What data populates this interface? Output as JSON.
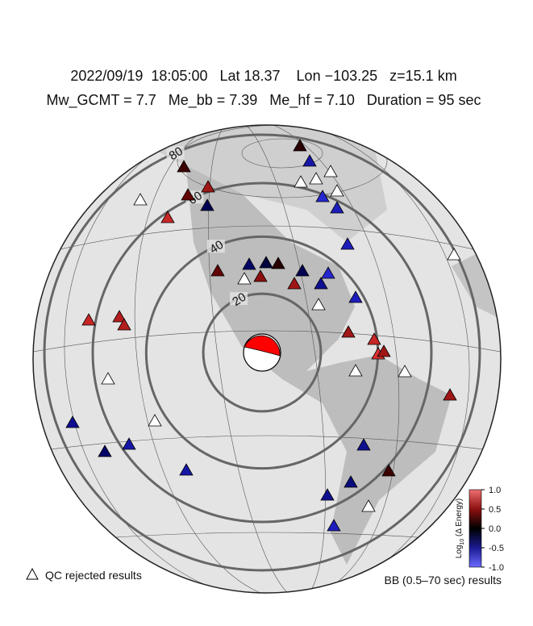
{
  "header": {
    "line1": "2022/09/19  18:05:00   Lat 18.37    Lon −103.25   z=15.1 km",
    "line2": "Mw_GCMT = 7.7   Me_bb = 7.39   Me_hf = 7.10   Duration = 95 sec"
  },
  "rings": [
    20,
    40,
    60,
    80
  ],
  "colorbar": {
    "label_main": "Log",
    "label_sub": "10",
    "label_rest": " (Δ Energy)",
    "clim": [
      -1,
      1
    ],
    "ticks": [
      {
        "value": 1,
        "label": "1.0"
      },
      {
        "value": 0.5,
        "label": "0.5"
      },
      {
        "value": 0,
        "label": "0.0"
      },
      {
        "value": -0.5,
        "label": "-0.5"
      },
      {
        "value": -1,
        "label": "-1.0"
      }
    ]
  },
  "stations": [
    0.0,
    0.1,
    -0.6,
    null,
    null,
    null,
    null,
    0.6,
    0.3,
    -0.2,
    null,
    0.8,
    -0.8,
    -0.7,
    -0.7,
    null,
    0.3,
    -0.3,
    -0.1,
    0.0,
    -0.2,
    -0.8,
    null,
    0.5,
    0.6,
    -0.5,
    null,
    -0.7,
    0.8,
    0.7,
    0.7,
    0.6,
    0.8,
    0.9,
    0.6,
    null,
    null,
    null,
    0.6,
    null,
    -0.5,
    -0.3,
    -0.6,
    -0.5,
    -0.6,
    0.1,
    -0.4,
    -0.5,
    null,
    -0.7
  ],
  "legend": {
    "qc": "QC rejected results",
    "bb": "BB (0.5–70 sec) results"
  }
}
